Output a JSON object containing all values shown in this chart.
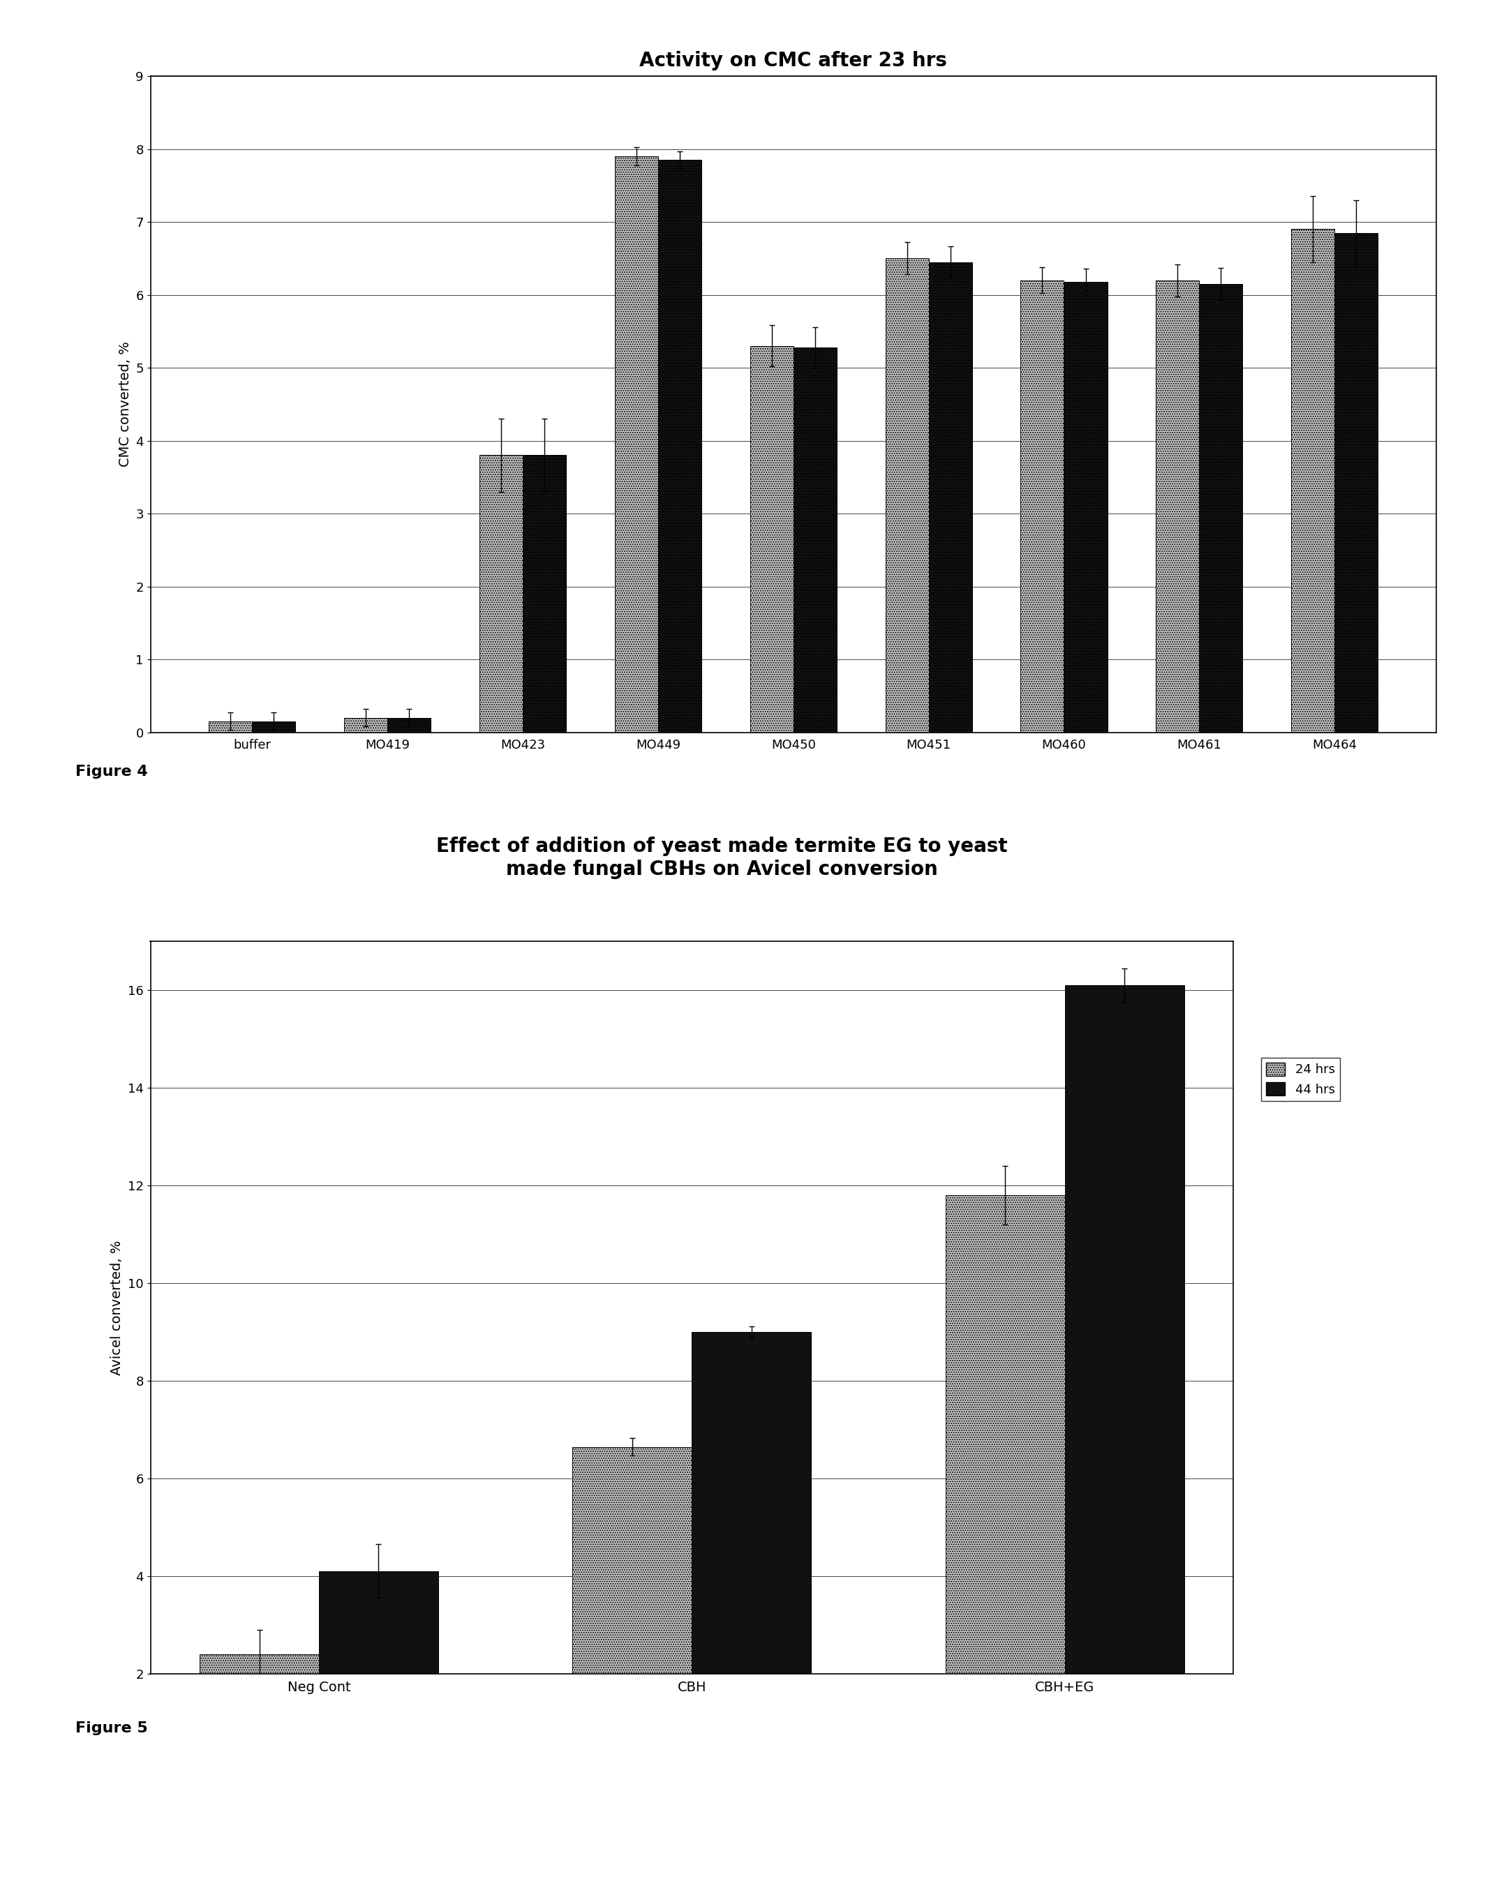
{
  "fig4": {
    "title": "Activity on CMC after 23 hrs",
    "ylabel": "CMC converted, %",
    "categories": [
      "buffer",
      "MO419",
      "MO423",
      "MO449",
      "MO450",
      "MO451",
      "MO460",
      "MO461",
      "MO464"
    ],
    "values_light": [
      0.15,
      0.2,
      3.8,
      7.9,
      5.3,
      6.5,
      6.2,
      6.2,
      6.9
    ],
    "values_dark": [
      0.15,
      0.2,
      3.8,
      7.85,
      5.28,
      6.45,
      6.18,
      6.15,
      6.85
    ],
    "errors_light": [
      0.12,
      0.12,
      0.5,
      0.12,
      0.28,
      0.22,
      0.18,
      0.22,
      0.45
    ],
    "errors_dark": [
      0.12,
      0.12,
      0.5,
      0.12,
      0.28,
      0.22,
      0.18,
      0.22,
      0.45
    ],
    "ylim": [
      0,
      9
    ],
    "yticks": [
      0,
      1,
      2,
      3,
      4,
      5,
      6,
      7,
      8,
      9
    ]
  },
  "fig5": {
    "title_line1": "Effect of addition of yeast made termite EG to yeast",
    "title_line2": "made fungal CBHs on Avicel conversion",
    "ylabel": "Avicel converted, %",
    "categories": [
      "Neg Cont",
      "CBH",
      "CBH+EG"
    ],
    "values_24": [
      2.4,
      6.65,
      11.8
    ],
    "values_44": [
      4.1,
      9.0,
      16.1
    ],
    "errors_24": [
      0.5,
      0.18,
      0.6
    ],
    "errors_44": [
      0.55,
      0.12,
      0.35
    ],
    "ylim": [
      2,
      17
    ],
    "yticks": [
      2,
      4,
      6,
      8,
      10,
      12,
      14,
      16
    ],
    "legend_24": "24 hrs",
    "legend_44": "44 hrs"
  },
  "figure4_label": "Figure 4",
  "figure5_label": "Figure 5",
  "light_gray": "#c8c8c8",
  "dark_black": "#111111",
  "mid_gray": "#808080"
}
